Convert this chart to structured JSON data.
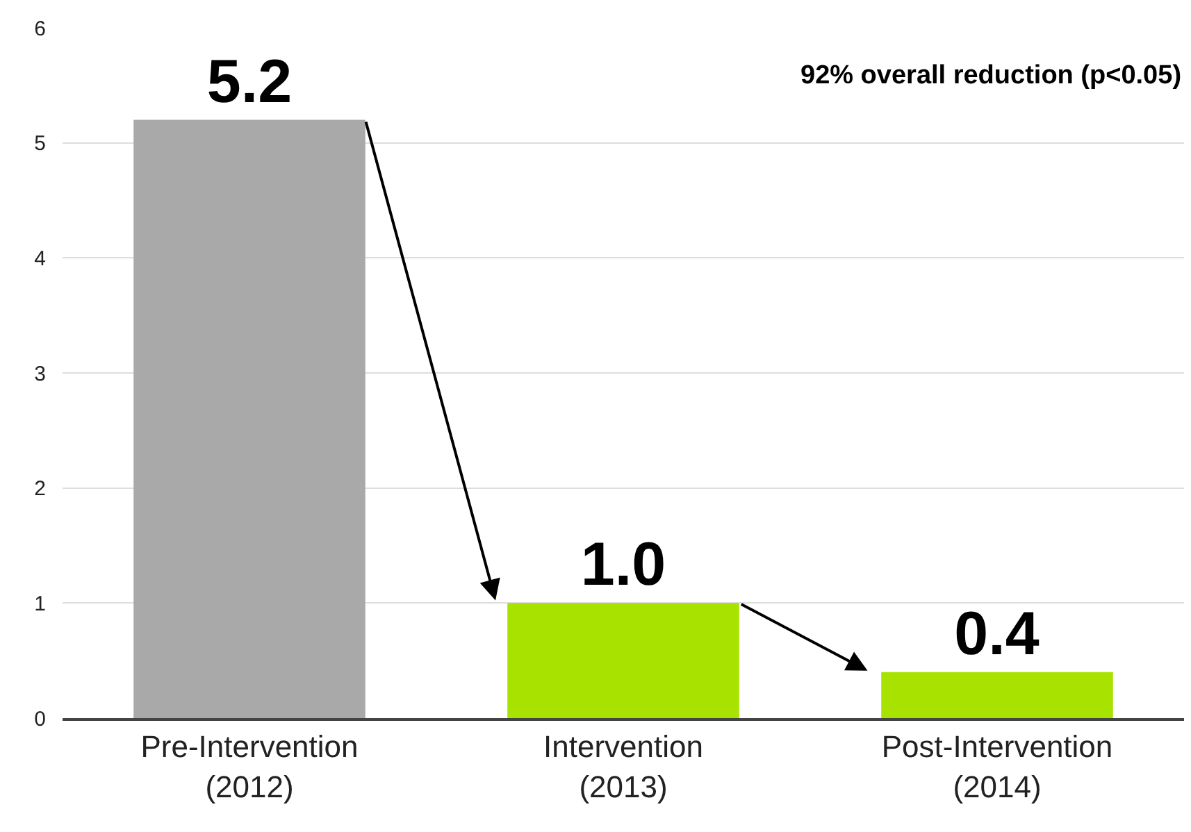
{
  "chart_data": {
    "type": "bar",
    "categories": [
      "Pre-Intervention\n(2012)",
      "Intervention\n(2013)",
      "Post-Intervention\n(2014)"
    ],
    "values": [
      5.2,
      1.0,
      0.4
    ],
    "colors": [
      "#a9a9a9",
      "#a8e200",
      "#a8e200"
    ],
    "value_labels": [
      "5.2",
      "1.0",
      "0.4"
    ],
    "ylim": [
      0,
      6
    ],
    "yticks": [
      0,
      1,
      2,
      3,
      4,
      5,
      6
    ],
    "grid": "y",
    "annotations": [
      "92% overall reduction (p<0.05)"
    ]
  }
}
